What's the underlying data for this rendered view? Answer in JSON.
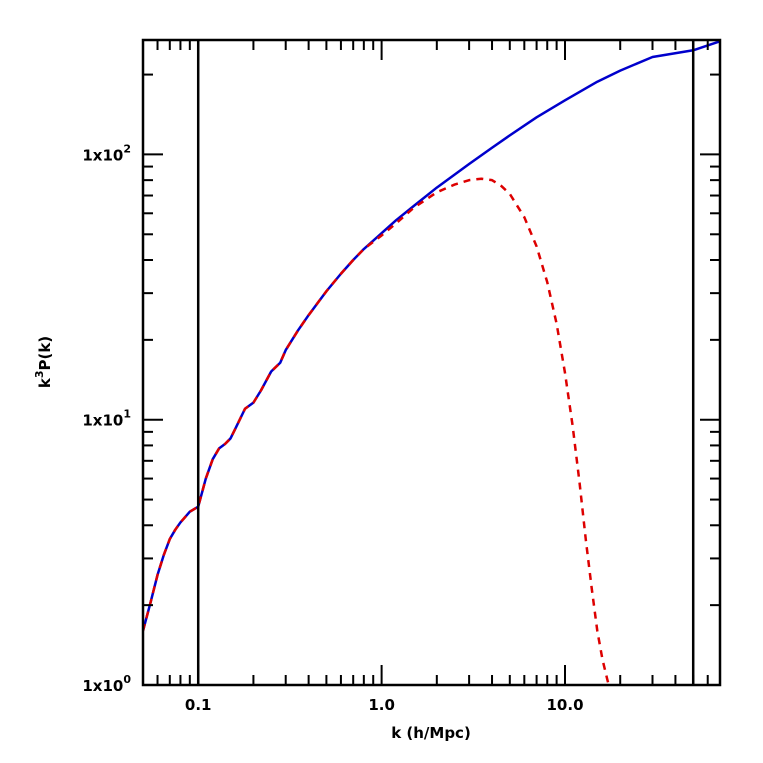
{
  "chart_data": {
    "type": "line",
    "xlabel": "k (h/Mpc)",
    "ylabel_prefix": "k",
    "ylabel_sup": "3",
    "ylabel_suffix": "P(k)",
    "x_scale": "log",
    "y_scale": "log",
    "xlim": [
      0.05,
      70
    ],
    "ylim": [
      1,
      270
    ],
    "grid": false,
    "x_ticks": [
      {
        "value": 0.1,
        "label": "0.1"
      },
      {
        "value": 1.0,
        "label": "1.0"
      },
      {
        "value": 10.0,
        "label": "10.0"
      }
    ],
    "y_ticks": [
      {
        "value": 1,
        "mantissa": "1x10",
        "exp": "0"
      },
      {
        "value": 10,
        "mantissa": "1x10",
        "exp": "1"
      },
      {
        "value": 100,
        "mantissa": "1x10",
        "exp": "2"
      }
    ],
    "vlines": [
      0.1,
      50
    ],
    "series": [
      {
        "color": "#0000cc",
        "style": "solid",
        "x": [
          0.05,
          0.055,
          0.06,
          0.065,
          0.07,
          0.075,
          0.08,
          0.085,
          0.09,
          0.1,
          0.11,
          0.12,
          0.13,
          0.14,
          0.15,
          0.16,
          0.18,
          0.2,
          0.22,
          0.25,
          0.28,
          0.3,
          0.35,
          0.4,
          0.5,
          0.6,
          0.7,
          0.8,
          1.0,
          1.2,
          1.5,
          2.0,
          3.0,
          4.0,
          5.0,
          7.0,
          10.0,
          15.0,
          20.0,
          30.0,
          50.0,
          70.0
        ],
        "y": [
          1.6,
          2.05,
          2.6,
          3.1,
          3.55,
          3.85,
          4.1,
          4.3,
          4.5,
          4.7,
          6.0,
          7.1,
          7.8,
          8.1,
          8.5,
          9.3,
          11.0,
          11.6,
          12.9,
          15.2,
          16.4,
          18.3,
          21.7,
          24.8,
          30.5,
          35.5,
          40.0,
          44.0,
          50.5,
          56.5,
          64.0,
          75.0,
          92.0,
          106.0,
          118.0,
          138.0,
          160.0,
          188.0,
          207.0,
          233.0,
          247.0,
          267.0
        ]
      },
      {
        "color": "#dd0000",
        "style": "dashed",
        "x": [
          0.05,
          0.055,
          0.06,
          0.065,
          0.07,
          0.075,
          0.08,
          0.085,
          0.09,
          0.1,
          0.11,
          0.12,
          0.13,
          0.14,
          0.15,
          0.16,
          0.18,
          0.2,
          0.22,
          0.25,
          0.28,
          0.3,
          0.35,
          0.4,
          0.5,
          0.6,
          0.7,
          0.8,
          1.0,
          1.2,
          1.5,
          2.0,
          2.5,
          3.0,
          3.5,
          4.0,
          4.5,
          5.0,
          6.0,
          7.0,
          8.0,
          9.0,
          10.0,
          11.0,
          12.0,
          13.0,
          14.0,
          15.0,
          16.0,
          17.0,
          18.0
        ],
        "y": [
          1.6,
          2.05,
          2.6,
          3.1,
          3.55,
          3.85,
          4.1,
          4.3,
          4.5,
          4.7,
          6.0,
          7.1,
          7.8,
          8.1,
          8.5,
          9.3,
          11.0,
          11.6,
          12.9,
          15.2,
          16.4,
          18.3,
          21.7,
          24.8,
          30.5,
          35.5,
          40.0,
          44.0,
          49.5,
          55.0,
          63.0,
          72.0,
          77.0,
          80.0,
          81.0,
          80.0,
          76.0,
          71.0,
          58.0,
          45.0,
          33.0,
          23.0,
          15.0,
          9.5,
          5.8,
          3.5,
          2.3,
          1.6,
          1.25,
          1.05,
          0.9
        ]
      }
    ]
  }
}
